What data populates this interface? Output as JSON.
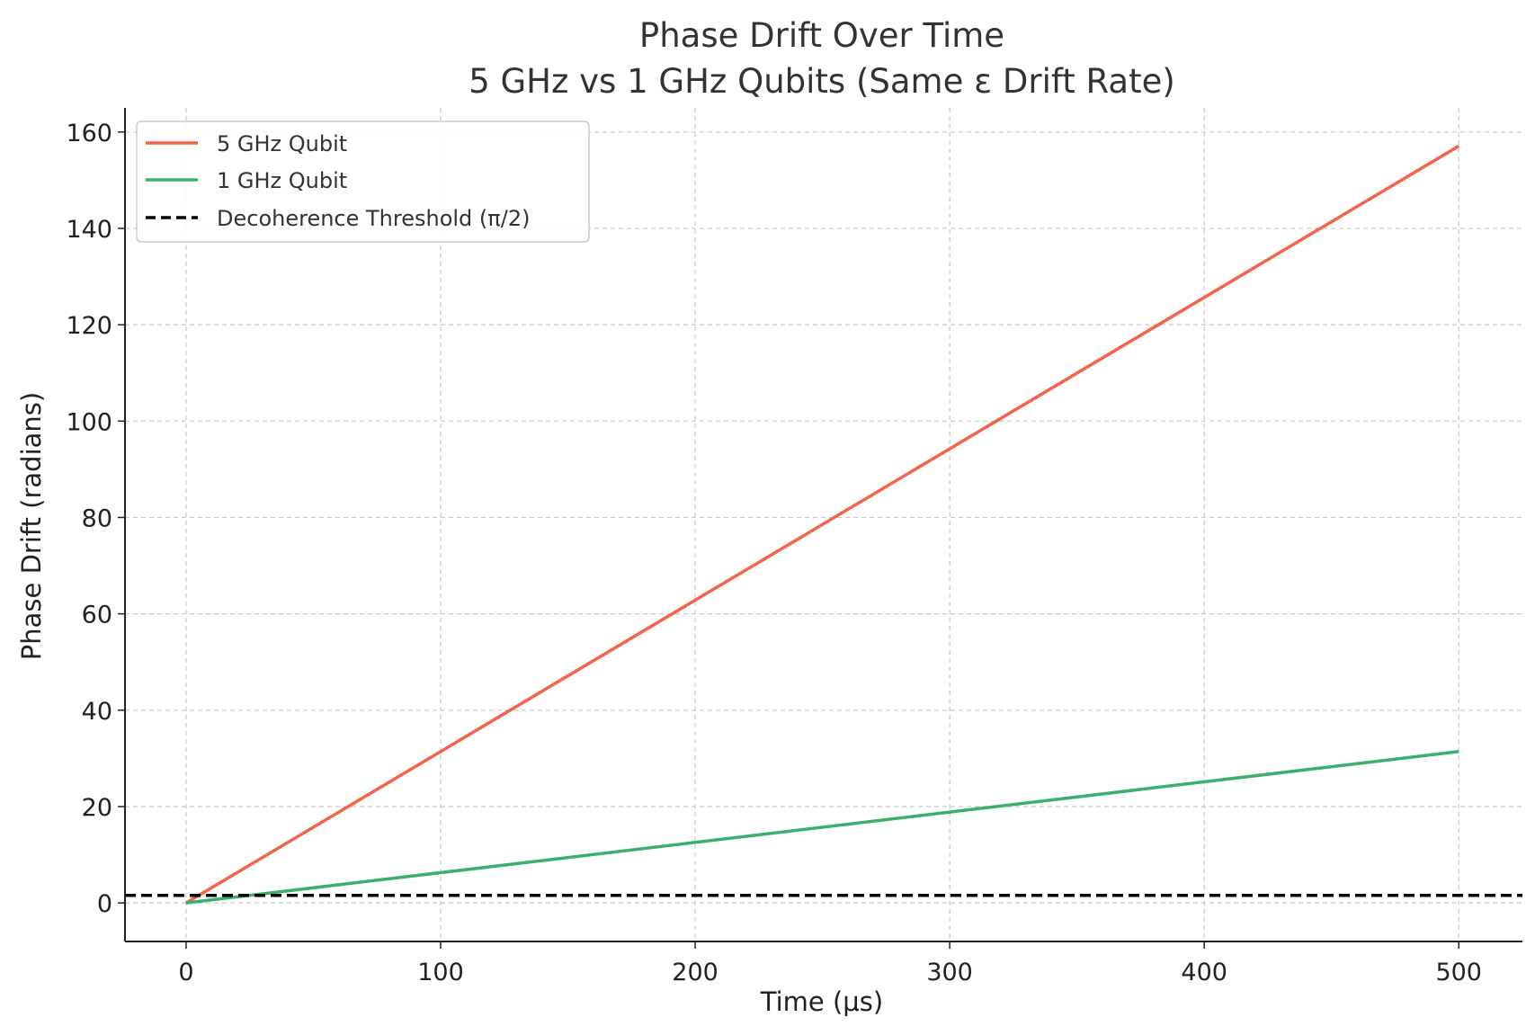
{
  "chart_data": {
    "type": "line",
    "title_line1": "Phase Drift Over Time",
    "title_line2": "5 GHz vs 1 GHz Qubits (Same ε Drift Rate)",
    "xlabel": "Time (μs)",
    "ylabel": "Phase Drift (radians)",
    "xlim": [
      -24,
      525
    ],
    "ylim": [
      -8,
      165
    ],
    "xticks": [
      0,
      100,
      200,
      300,
      400,
      500
    ],
    "yticks": [
      0,
      20,
      40,
      60,
      80,
      100,
      120,
      140,
      160
    ],
    "grid": true,
    "legend_position": "top-left",
    "series": [
      {
        "name": "5 GHz Qubit",
        "color": "#f4634a",
        "style": "solid",
        "x": [
          0,
          500
        ],
        "y": [
          0,
          157.08
        ]
      },
      {
        "name": "1 GHz Qubit",
        "color": "#3aaf6f",
        "style": "solid",
        "x": [
          0,
          500
        ],
        "y": [
          0,
          31.42
        ]
      },
      {
        "name": "Decoherence Threshold (π/2)",
        "color": "#000000",
        "style": "dashed",
        "y_constant": 1.5708
      }
    ]
  }
}
